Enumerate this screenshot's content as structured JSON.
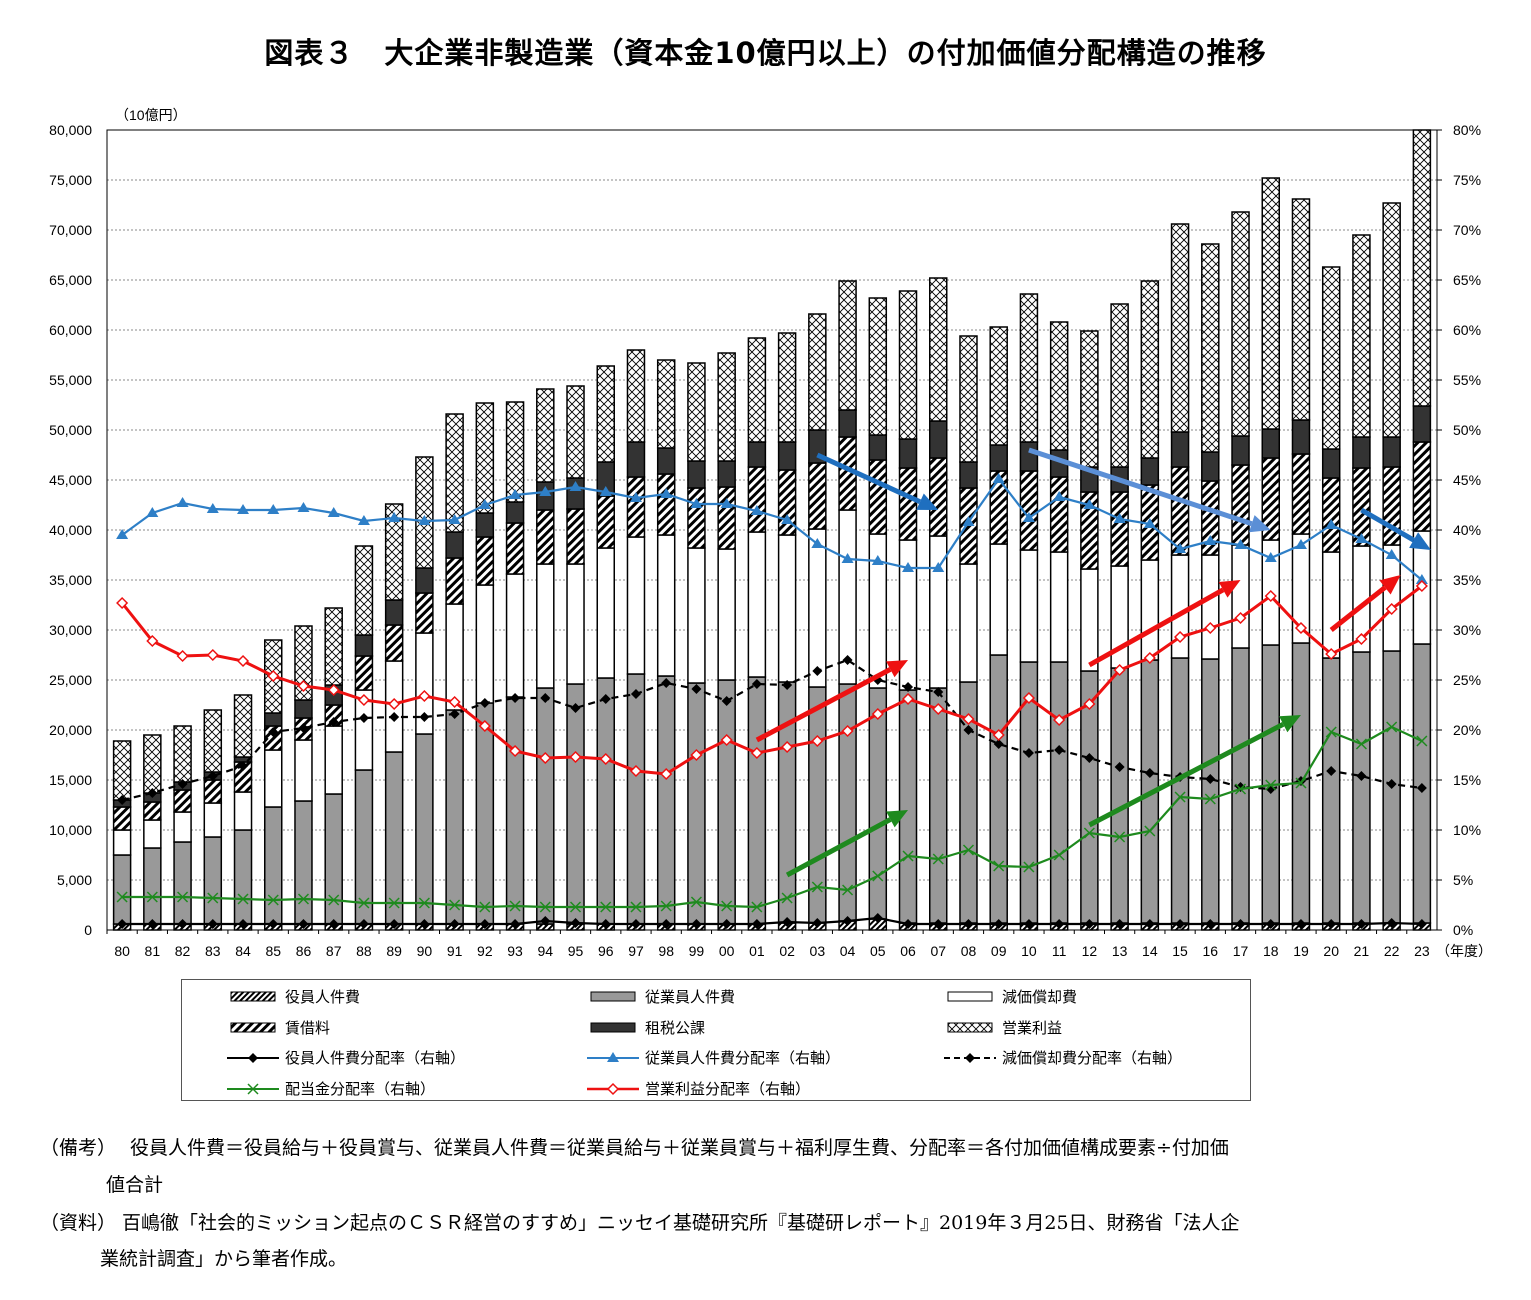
{
  "title": "図表３　大企業非製造業（資本金10億円以上）の付加価値分配構造の推移",
  "chart_data": {
    "type": "bar",
    "stacked": true,
    "title": "図表３　大企業非製造業（資本金10億円以上）の付加価値分配構造の推移",
    "ylabel": "（10億円）",
    "xlabel": "（年度）",
    "ylim": [
      0,
      80000
    ],
    "y2lim": [
      0,
      80
    ],
    "yticks": [
      "0",
      "5,000",
      "10,000",
      "15,000",
      "20,000",
      "25,000",
      "30,000",
      "35,000",
      "40,000",
      "45,000",
      "50,000",
      "55,000",
      "60,000",
      "65,000",
      "70,000",
      "75,000",
      "80,000"
    ],
    "y2ticks": [
      "0%",
      "5%",
      "10%",
      "15%",
      "20%",
      "25%",
      "30%",
      "35%",
      "40%",
      "45%",
      "50%",
      "55%",
      "60%",
      "65%",
      "70%",
      "75%",
      "80%"
    ],
    "grid": true,
    "categories": [
      "80",
      "81",
      "82",
      "83",
      "84",
      "85",
      "86",
      "87",
      "88",
      "89",
      "90",
      "91",
      "92",
      "93",
      "94",
      "95",
      "96",
      "97",
      "98",
      "99",
      "00",
      "01",
      "02",
      "03",
      "04",
      "05",
      "06",
      "07",
      "08",
      "09",
      "10",
      "11",
      "12",
      "13",
      "14",
      "15",
      "16",
      "17",
      "18",
      "19",
      "20",
      "21",
      "22",
      "23"
    ],
    "bar_series": [
      {
        "name": "役員人件費",
        "pattern": "officer",
        "values": [
          600,
          600,
          600,
          600,
          600,
          600,
          600,
          600,
          600,
          600,
          600,
          600,
          600,
          600,
          600,
          600,
          600,
          600,
          600,
          600,
          600,
          600,
          700,
          700,
          900,
          1100,
          700,
          700,
          700,
          700,
          700,
          700,
          700,
          700,
          700,
          700,
          700,
          700,
          700,
          700,
          700,
          700,
          700,
          700
        ]
      },
      {
        "name": "従業員人件費",
        "pattern": "employee",
        "values": [
          6900,
          7600,
          8200,
          8700,
          9400,
          11700,
          12300,
          13000,
          15400,
          17200,
          19000,
          21400,
          22100,
          22700,
          23600,
          24000,
          24600,
          25000,
          24800,
          24100,
          24400,
          24700,
          24100,
          23600,
          23700,
          23100,
          23300,
          23500,
          24100,
          26800,
          26100,
          26100,
          25200,
          25500,
          26300,
          26500,
          26400,
          27500,
          27800,
          28000,
          26500,
          27100,
          27200,
          27900
        ]
      },
      {
        "name": "減価償却費",
        "pattern": "depreciation",
        "values": [
          2500,
          2800,
          3000,
          3400,
          3800,
          5700,
          6100,
          6800,
          8000,
          9100,
          10100,
          10600,
          11800,
          12300,
          12400,
          12000,
          13000,
          13700,
          14100,
          13500,
          13100,
          14500,
          14700,
          15800,
          17400,
          15400,
          15000,
          15200,
          11800,
          11100,
          11200,
          11000,
          10200,
          10200,
          10000,
          10300,
          10400,
          10300,
          10500,
          10900,
          10600,
          10600,
          10600,
          11300
        ]
      },
      {
        "name": "賃借料",
        "pattern": "rent",
        "values": [
          2300,
          1800,
          2200,
          2300,
          3000,
          2400,
          2200,
          2100,
          3400,
          3600,
          4000,
          4600,
          4800,
          5100,
          5400,
          5500,
          5200,
          6000,
          6100,
          6000,
          6200,
          6500,
          6500,
          6600,
          7300,
          7400,
          7200,
          7800,
          7600,
          7300,
          7900,
          7500,
          7700,
          7400,
          7500,
          8800,
          7400,
          8000,
          8200,
          8000,
          7400,
          7800,
          7800,
          8900
        ]
      },
      {
        "name": "租税公課",
        "pattern": "tax",
        "values": [
          700,
          900,
          800,
          800,
          500,
          1300,
          1800,
          2000,
          2100,
          2500,
          2500,
          2600,
          2400,
          2100,
          2800,
          3100,
          3400,
          3500,
          2600,
          2700,
          2600,
          2500,
          2800,
          3300,
          2700,
          2500,
          2900,
          3700,
          2600,
          2600,
          2900,
          2700,
          2500,
          2500,
          2700,
          3500,
          2900,
          2900,
          2900,
          3400,
          2900,
          3100,
          3000,
          3600
        ]
      },
      {
        "name": "営業利益",
        "pattern": "op",
        "values": [
          5900,
          5800,
          5600,
          6200,
          6200,
          7300,
          7400,
          7700,
          8900,
          9600,
          11100,
          11800,
          11000,
          10000,
          9300,
          9200,
          9600,
          9200,
          8800,
          9800,
          10800,
          10400,
          10900,
          11600,
          12900,
          13700,
          14800,
          14300,
          12600,
          11800,
          14800,
          12800,
          13600,
          16300,
          17700,
          20800,
          20800,
          22400,
          25100,
          22100,
          18200,
          20200,
          23400,
          27600
        ]
      }
    ],
    "line_series": [
      {
        "name": "役員人件費分配率（右軸）",
        "color": "#000000",
        "marker": "diamond",
        "dash": false,
        "values": [
          0.6,
          0.6,
          0.6,
          0.6,
          0.6,
          0.6,
          0.6,
          0.6,
          0.6,
          0.6,
          0.6,
          0.6,
          0.6,
          0.6,
          0.9,
          0.7,
          0.6,
          0.6,
          0.6,
          0.6,
          0.6,
          0.6,
          0.8,
          0.7,
          0.9,
          1.2,
          0.6,
          0.6,
          0.6,
          0.6,
          0.6,
          0.6,
          0.6,
          0.6,
          0.6,
          0.6,
          0.6,
          0.6,
          0.6,
          0.6,
          0.6,
          0.6,
          0.7,
          0.6
        ]
      },
      {
        "name": "従業員人件費分配率（右軸）",
        "color": "#2e7fc7",
        "marker": "triangle",
        "dash": false,
        "values": [
          39.5,
          41.7,
          42.7,
          42.1,
          42.0,
          42.0,
          42.2,
          41.7,
          40.9,
          41.2,
          40.9,
          41.0,
          42.5,
          43.5,
          43.8,
          44.3,
          43.8,
          43.2,
          43.6,
          42.6,
          42.6,
          41.9,
          41.0,
          38.6,
          37.1,
          36.9,
          36.2,
          36.2,
          40.8,
          45.1,
          41.2,
          43.3,
          42.5,
          41.1,
          40.6,
          38.1,
          38.9,
          38.5,
          37.2,
          38.5,
          40.5,
          39.1,
          37.5,
          35.0
        ]
      },
      {
        "name": "減価償却費分配率（右軸）",
        "color": "#000000",
        "marker": "diamond",
        "dash": true,
        "values": [
          13.0,
          13.7,
          14.6,
          15.4,
          16.4,
          19.8,
          20.2,
          20.8,
          21.2,
          21.3,
          21.3,
          21.6,
          22.7,
          23.2,
          23.2,
          22.2,
          23.1,
          23.6,
          24.7,
          24.1,
          22.9,
          24.6,
          24.5,
          25.9,
          27.0,
          25.0,
          24.3,
          23.8,
          20.0,
          18.6,
          17.7,
          18.0,
          17.2,
          16.3,
          15.7,
          15.3,
          15.1,
          14.3,
          14.1,
          14.9,
          15.9,
          15.4,
          14.6,
          14.2
        ]
      },
      {
        "name": "配当金分配率（右軸）",
        "color": "#1e8a1e",
        "marker": "x",
        "dash": false,
        "values": [
          3.3,
          3.3,
          3.3,
          3.2,
          3.1,
          3.0,
          3.1,
          3.0,
          2.7,
          2.7,
          2.7,
          2.5,
          2.3,
          2.4,
          2.3,
          2.3,
          2.3,
          2.3,
          2.4,
          2.8,
          2.4,
          2.3,
          3.2,
          4.3,
          4.0,
          5.4,
          7.4,
          7.1,
          8.0,
          6.4,
          6.3,
          7.5,
          9.7,
          9.3,
          9.9,
          13.3,
          13.1,
          14.1,
          14.5,
          14.7,
          19.8,
          18.6,
          20.3,
          18.9
        ]
      },
      {
        "name": "営業利益分配率（右軸）",
        "color": "#ee1111",
        "marker": "diamond-open",
        "dash": false,
        "values": [
          32.7,
          28.9,
          27.4,
          27.5,
          26.9,
          25.4,
          24.4,
          24.0,
          23.0,
          22.6,
          23.4,
          22.8,
          20.4,
          17.9,
          17.2,
          17.3,
          17.1,
          15.9,
          15.6,
          17.5,
          19.0,
          17.7,
          18.3,
          18.9,
          19.9,
          21.6,
          23.1,
          22.1,
          21.1,
          19.5,
          23.2,
          21.0,
          22.6,
          26.0,
          27.2,
          29.3,
          30.2,
          31.2,
          33.4,
          30.2,
          27.6,
          29.1,
          32.1,
          34.4
        ]
      }
    ],
    "trend_arrows": [
      {
        "color": "#1f6fbf",
        "from": [
          23,
          47.5
        ],
        "to": [
          27,
          42
        ]
      },
      {
        "color": "#5b8fd6",
        "from": [
          30,
          48
        ],
        "to": [
          38,
          40
        ]
      },
      {
        "color": "#1f6fbf",
        "from": [
          41,
          42
        ],
        "to": [
          43.3,
          38
        ]
      },
      {
        "color": "#ee1111",
        "from": [
          21,
          19
        ],
        "to": [
          26,
          27
        ]
      },
      {
        "color": "#ee1111",
        "from": [
          32,
          26.5
        ],
        "to": [
          37,
          35
        ]
      },
      {
        "color": "#ee1111",
        "from": [
          40,
          30
        ],
        "to": [
          42.3,
          35.5
        ]
      },
      {
        "color": "#1e8a1e",
        "from": [
          22,
          5.5
        ],
        "to": [
          26,
          12
        ]
      },
      {
        "color": "#1e8a1e",
        "from": [
          32,
          10.5
        ],
        "to": [
          39,
          21.5
        ]
      }
    ],
    "legend_placement": "bottom"
  },
  "legend": [
    "役員人件費",
    "従業員人件費",
    "減価償却費",
    "賃借料",
    "租税公課",
    "営業利益",
    "役員人件費分配率（右軸）",
    "従業員人件費分配率（右軸）",
    "減価償却費分配率（右軸）",
    "配当金分配率（右軸）",
    "営業利益分配率（右軸）"
  ],
  "notes": {
    "remarks_label": "（備考）",
    "remarks_line1": "役員人件費＝役員給与＋役員賞与、従業員人件費＝従業員給与＋従業員賞与＋福利厚生費、分配率＝各付加価値構成要素÷付加価",
    "remarks_line2": "値合計",
    "source_label": "（資料）",
    "source_line1": "百嶋徹「社会的ミッション起点のＣＳＲ経営のすすめ」ニッセイ基礎研究所『基礎研レポート』2019年３月25日、財務省「法人企",
    "source_line2": "業統計調査」から筆者作成。"
  }
}
